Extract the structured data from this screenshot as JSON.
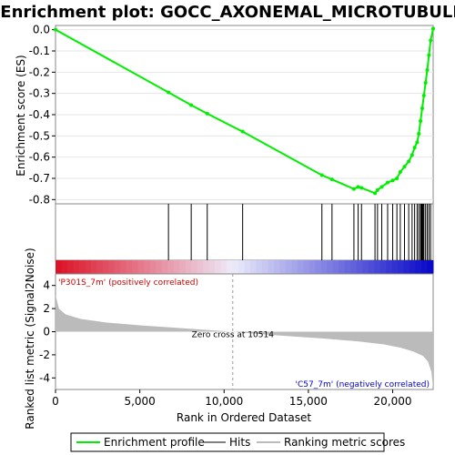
{
  "chart_data": {
    "type": "line",
    "title": "Enrichment plot: GOCC_AXONEMAL_MICROTUBULE",
    "panels": {
      "enrichment": {
        "ylabel": "Enrichment score (ES)",
        "ylim": [
          -0.82,
          0.02
        ],
        "yticks": [
          0.0,
          -0.1,
          -0.2,
          -0.3,
          -0.4,
          -0.5,
          -0.6,
          -0.7,
          -0.8
        ],
        "ytick_labels": [
          "0.0",
          "-0.1",
          "-0.2",
          "-0.3",
          "-0.4",
          "-0.5",
          "-0.6",
          "-0.7",
          "-0.8"
        ],
        "series": [
          {
            "name": "Enrichment profile",
            "color": "#00ee00",
            "x": [
              0,
              6700,
              8050,
              9000,
              11100,
              15800,
              16400,
              17700,
              17950,
              18150,
              18950,
              19100,
              19350,
              19700,
              20000,
              20250,
              20450,
              20700,
              20950,
              21150,
              21300,
              21450,
              21550,
              21650,
              21750,
              21850,
              21950,
              22050,
              22150,
              22250,
              22400
            ],
            "y": [
              0.0,
              -0.295,
              -0.355,
              -0.395,
              -0.48,
              -0.685,
              -0.705,
              -0.75,
              -0.74,
              -0.745,
              -0.77,
              -0.755,
              -0.74,
              -0.72,
              -0.71,
              -0.7,
              -0.67,
              -0.645,
              -0.62,
              -0.59,
              -0.555,
              -0.53,
              -0.49,
              -0.43,
              -0.37,
              -0.31,
              -0.25,
              -0.19,
              -0.12,
              -0.05,
              0.005
            ]
          }
        ]
      },
      "hits": {
        "name": "Hits",
        "positions": [
          6700,
          8050,
          9000,
          11100,
          15800,
          16400,
          17700,
          17950,
          18150,
          18950,
          19100,
          19350,
          19700,
          20000,
          20250,
          20450,
          20700,
          20950,
          21150,
          21300,
          21450,
          21550,
          21650,
          21700,
          21750,
          21800,
          21850,
          21950,
          22050,
          22150,
          22250
        ]
      },
      "ranking": {
        "name": "Ranking metric scores",
        "ylabel": "Ranked list metric (Signal2Noise)",
        "ylim": [
          -5,
          5
        ],
        "yticks": [
          4,
          2,
          0,
          -2,
          -4
        ],
        "ytick_labels": [
          "4",
          "2",
          "0",
          "-2",
          "-4"
        ],
        "x": [
          0,
          200,
          600,
          1500,
          3000,
          5000,
          7000,
          9000,
          10514,
          12000,
          14000,
          16000,
          18000,
          19500,
          20500,
          21200,
          21800,
          22100,
          22300,
          22400
        ],
        "y": [
          3.2,
          2.0,
          1.5,
          1.1,
          0.8,
          0.55,
          0.35,
          0.15,
          0.0,
          -0.2,
          -0.4,
          -0.6,
          -0.85,
          -1.1,
          -1.4,
          -1.7,
          -2.1,
          -2.6,
          -3.5,
          -4.9
        ],
        "zero_cross": 10514,
        "zero_cross_label": "Zero cross at 10514",
        "pos_label": "'P301S_7m' (positively correlated)",
        "neg_label": "'C57_7m' (negatively correlated)"
      }
    },
    "xlabel": "Rank in Ordered Dataset",
    "xlim": [
      0,
      22400
    ],
    "xticks": [
      0,
      5000,
      10000,
      15000,
      20000
    ],
    "xtick_labels": [
      "0",
      "5,000",
      "10,000",
      "15,000",
      "20,000"
    ],
    "legend": {
      "placement": "bottom",
      "entries": [
        "Enrichment profile",
        "Hits",
        "Ranking metric scores"
      ]
    },
    "colors": {
      "profile": "#00ee00",
      "pos_label": "#cc0000",
      "neg_label": "#0000cc",
      "ranking_fill": "#bbbbbb"
    }
  }
}
